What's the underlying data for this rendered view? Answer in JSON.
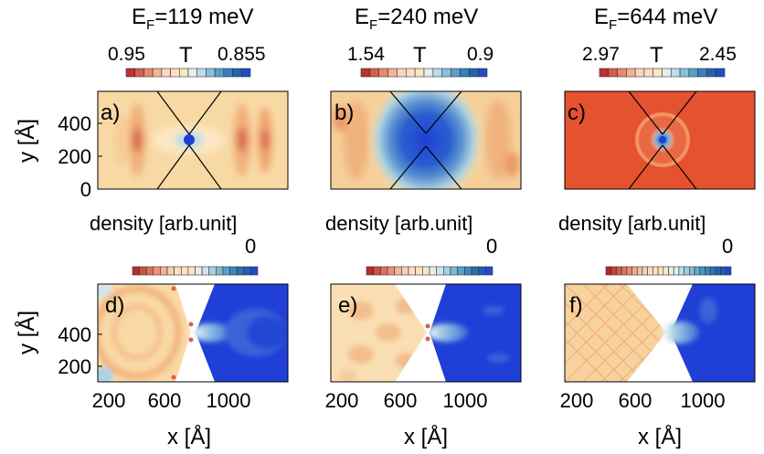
{
  "chart_data": {
    "type": "heatmap",
    "rows": [
      {
        "quantity": "T",
        "axes": {
          "ylabel": "y [Å]",
          "yticks": [
            0,
            200,
            400
          ]
        },
        "panels": [
          {
            "label": "a)",
            "title": "E",
            "title_sub": "F",
            "title_rest": "=119 meV",
            "cb_min": "0.95",
            "cb_var": "T",
            "cb_max": "0.855"
          },
          {
            "label": "b)",
            "title": "E",
            "title_sub": "F",
            "title_rest": "=240 meV",
            "cb_min": "1.54",
            "cb_var": "T",
            "cb_max": "0.9"
          },
          {
            "label": "c)",
            "title": "E",
            "title_sub": "F",
            "title_rest": "=644 meV",
            "cb_min": "2.97",
            "cb_var": "T",
            "cb_max": "2.45"
          }
        ]
      },
      {
        "quantity": "density",
        "axes": {
          "ylabel": "y [Å]",
          "yticks": [
            200,
            400
          ],
          "xlabel": "x [Å]",
          "xticks": [
            200,
            600,
            1000
          ]
        },
        "panels": [
          {
            "label": "d)",
            "cb_title": "density [arb.unit]",
            "cb_max": "0"
          },
          {
            "label": "e)",
            "cb_title": "density [arb.unit]",
            "cb_max": "0"
          },
          {
            "label": "f)",
            "cb_title": "density [arb.unit]",
            "cb_max": "0"
          }
        ]
      }
    ],
    "colormap": [
      "#b2182b",
      "#d6604d",
      "#f4a582",
      "#fddbc7",
      "#fde5b8",
      "#e0f0f5",
      "#92c5de",
      "#4393c3",
      "#2166ac",
      "#1f3fd6"
    ],
    "colors": {
      "map_blue": "#1f3fd6",
      "map_orange": "#e5522f",
      "map_cream": "#f8d9a4"
    }
  }
}
